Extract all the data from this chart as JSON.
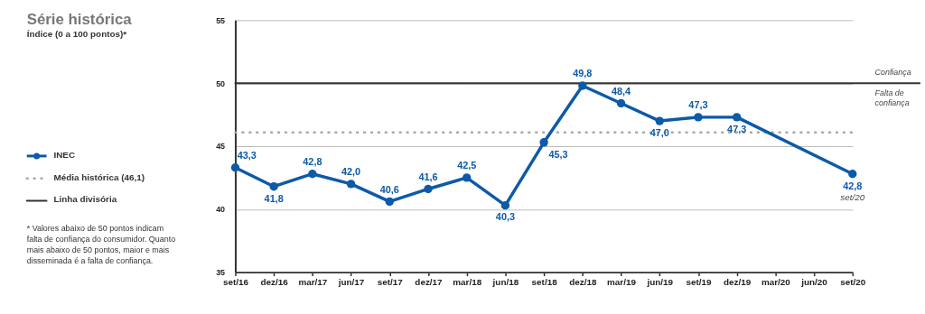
{
  "chart_data": {
    "type": "line",
    "title": "Série histórica",
    "subtitle": "Índice (0 a 100 pontos)*",
    "categories": [
      "set/16",
      "dez/16",
      "mar/17",
      "jun/17",
      "set/17",
      "dez/17",
      "mar/18",
      "jun/18",
      "set/18",
      "dez/18",
      "mar/19",
      "jun/19",
      "set/19",
      "dez/19",
      "mar/20",
      "jun/20",
      "set/20"
    ],
    "series": [
      {
        "name": "INEC",
        "color": "#0d5aa7",
        "values": [
          43.3,
          41.8,
          42.8,
          42.0,
          40.6,
          41.6,
          42.5,
          40.3,
          45.3,
          49.8,
          48.4,
          47.0,
          47.3,
          47.3,
          null,
          null,
          42.8
        ],
        "value_labels": [
          "43,3",
          "41,8",
          "42,8",
          "42,0",
          "40,6",
          "41,6",
          "42,5",
          "40,3",
          "45,3",
          "49,8",
          "48,4",
          "47,0",
          "47,3",
          "47,3",
          null,
          null,
          "42,8"
        ]
      }
    ],
    "ref_lines": [
      {
        "axis": "y",
        "value": 46.1,
        "label": "Média histórica (46,1)",
        "color": "#a8a8a8",
        "line_style": "dotted"
      },
      {
        "axis": "y",
        "value": 50,
        "label": "Linha divisória",
        "color": "#333333",
        "line_style": "solid"
      }
    ],
    "annotations": [
      {
        "text": "set/20",
        "x": "set/20",
        "y": 42.8
      },
      "Confiança",
      "Falta de confiança",
      "* Valores abaixo de 50 pontos indicam falta de confiança do consumidor. Quanto mais abaixo de 50 pontos, maior e mais disseminada é a falta de confiança."
    ],
    "ylim": [
      35,
      55
    ],
    "yticks": [
      35,
      40,
      45,
      50,
      55
    ],
    "grid": "y",
    "legend": "left",
    "marker": "circle",
    "line_style": "solid"
  }
}
